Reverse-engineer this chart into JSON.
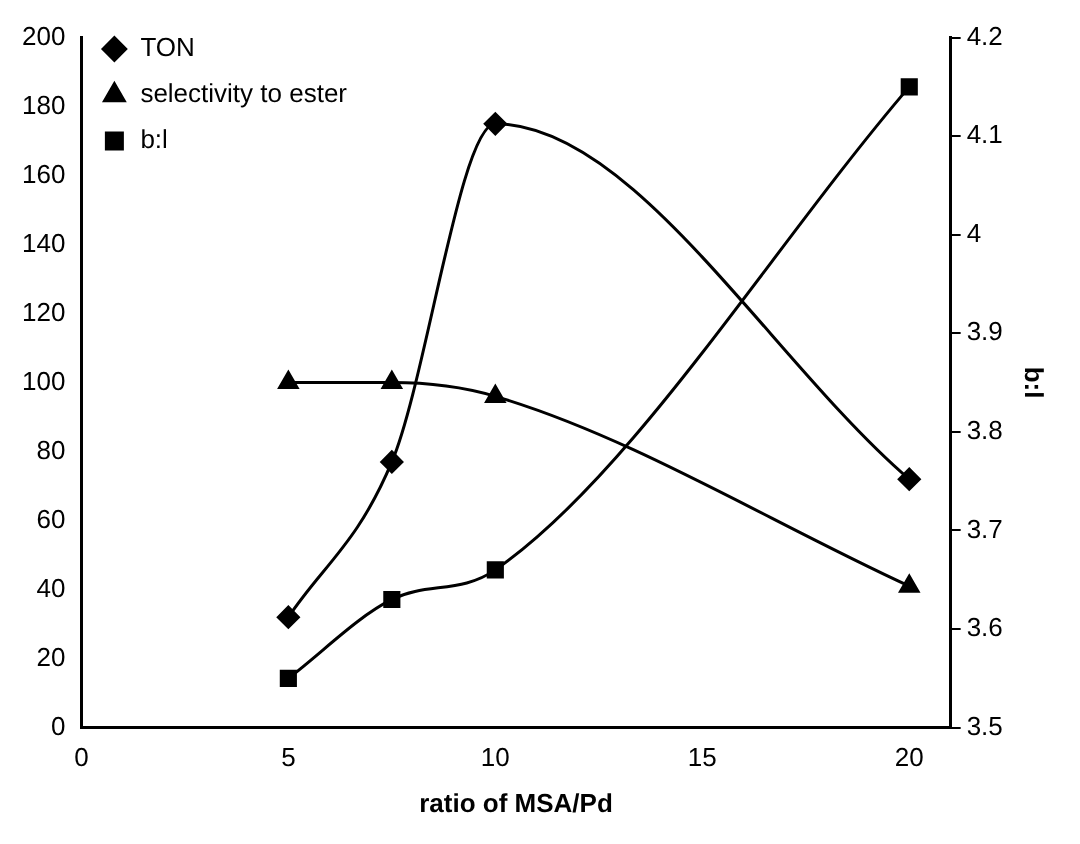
{
  "chart_data": {
    "type": "line",
    "xlabel": "ratio of MSA/Pd",
    "y2label": "b:l",
    "x": [
      5,
      7.5,
      10,
      20
    ],
    "series": [
      {
        "name": "TON",
        "color": "#000000",
        "marker": "diamond",
        "values": [
          32,
          77,
          175,
          72
        ]
      },
      {
        "name": "selectivity to ester",
        "color": "#000000",
        "marker": "triangle",
        "values": [
          100,
          100,
          96,
          41
        ]
      },
      {
        "name": "b:l",
        "color": "#000000",
        "marker": "square",
        "axis": "y2",
        "values": [
          3.55,
          3.63,
          3.66,
          4.15
        ]
      }
    ],
    "xlim": [
      0,
      21
    ],
    "xticks": [
      0,
      5,
      10,
      15,
      20
    ],
    "ylim": [
      0,
      200
    ],
    "yticks": [
      0,
      20,
      40,
      60,
      80,
      100,
      120,
      140,
      160,
      180,
      200
    ],
    "y2lim": [
      3.5,
      4.2
    ],
    "y2ticks": [
      3.5,
      3.6,
      3.7,
      3.8,
      3.9,
      4,
      4.1,
      4.2
    ],
    "grid": false,
    "legend": "top left",
    "line_style": "solid"
  }
}
